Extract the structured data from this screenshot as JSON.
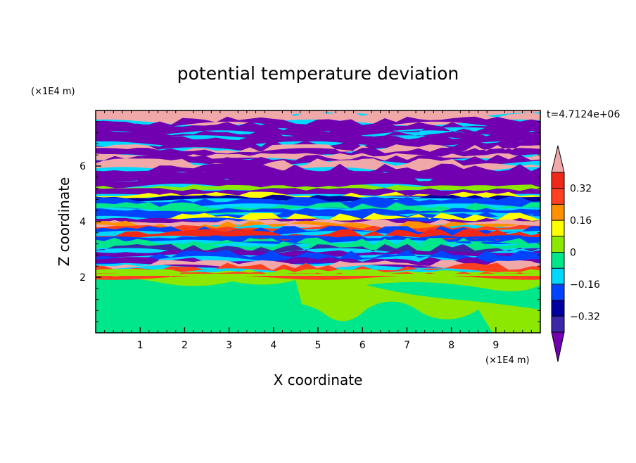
{
  "chart_data": {
    "type": "heatmap",
    "title": "potential temperature deviation",
    "xlabel": "X coordinate",
    "ylabel": "Z coordinate",
    "x_unit": "(×1E4 m)",
    "y_unit": "(×1E4 m)",
    "time_label": "t=4.7124e+06",
    "xlim": [
      0,
      10
    ],
    "ylim": [
      0,
      8
    ],
    "x_ticks": [
      "1",
      "2",
      "3",
      "4",
      "5",
      "6",
      "7",
      "8",
      "9"
    ],
    "y_ticks": [
      "2",
      "4",
      "6"
    ],
    "colorbar": {
      "labels": [
        "0.32",
        "0.16",
        "0",
        "-0.16",
        "-0.32"
      ],
      "levels": [
        -0.4,
        -0.32,
        -0.24,
        -0.16,
        -0.08,
        0,
        0.08,
        0.16,
        0.24,
        0.32,
        0.4
      ],
      "colors": {
        "below": "#7000b0",
        "bands": [
          "#3a28a8",
          "#0000a0",
          "#0044ff",
          "#00d8ff",
          "#00e68a",
          "#8ce800",
          "#ffff00",
          "#ff9000",
          "#ff4020",
          "#f02818"
        ],
        "above": "#f0a8a8"
      }
    }
  }
}
